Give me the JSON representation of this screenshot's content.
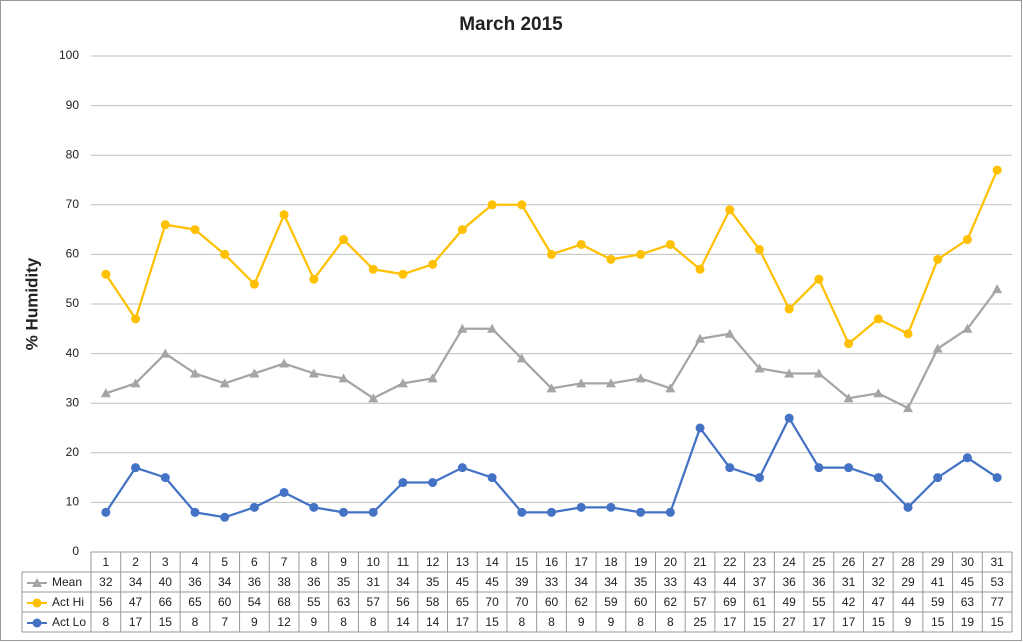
{
  "chart_data": {
    "type": "line",
    "title": "March 2015",
    "y_label": "% Humidity",
    "categories": [
      "1",
      "2",
      "3",
      "4",
      "5",
      "6",
      "7",
      "8",
      "9",
      "10",
      "11",
      "12",
      "13",
      "14",
      "15",
      "16",
      "17",
      "18",
      "19",
      "20",
      "21",
      "22",
      "23",
      "24",
      "25",
      "26",
      "27",
      "28",
      "29",
      "30",
      "31"
    ],
    "series": [
      {
        "name": "Mean",
        "color": "#a5a5a5",
        "marker": "triangle",
        "values": [
          32,
          34,
          40,
          36,
          34,
          36,
          38,
          36,
          35,
          31,
          34,
          35,
          45,
          45,
          39,
          33,
          34,
          34,
          35,
          33,
          43,
          44,
          37,
          36,
          36,
          31,
          32,
          29,
          41,
          45,
          53
        ]
      },
      {
        "name": "Act Hi",
        "color": "#ffc000",
        "marker": "circle",
        "values": [
          56,
          47,
          66,
          65,
          60,
          54,
          68,
          55,
          63,
          57,
          56,
          58,
          65,
          70,
          70,
          60,
          62,
          59,
          60,
          62,
          57,
          69,
          61,
          49,
          55,
          42,
          47,
          44,
          59,
          63,
          77
        ]
      },
      {
        "name": "Act Lo",
        "color": "#4472c4",
        "marker": "circle",
        "values": [
          8,
          17,
          15,
          8,
          7,
          9,
          12,
          9,
          8,
          8,
          14,
          14,
          17,
          15,
          8,
          8,
          9,
          9,
          8,
          8,
          25,
          17,
          15,
          27,
          17,
          17,
          15,
          9,
          15,
          19,
          15
        ]
      }
    ],
    "ylim": [
      0,
      100
    ],
    "yticks": [
      0,
      10,
      20,
      30,
      40,
      50,
      60,
      70,
      80,
      90,
      100
    ],
    "grid": true,
    "data_table": true
  }
}
